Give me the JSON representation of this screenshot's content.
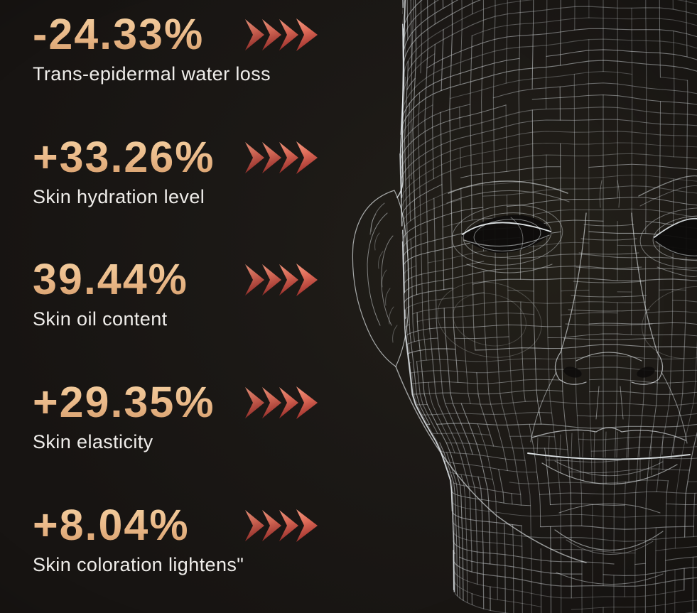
{
  "page": {
    "description": "Skincare clinical results infographic over a 3D wireframe face",
    "background_color": "#1B1816"
  },
  "stats": [
    {
      "value": "-24.33%",
      "label": "Trans-epidermal water loss"
    },
    {
      "value": "+33.26%",
      "label": "Skin hydration level"
    },
    {
      "value": "39.44%",
      "label": "Skin oil content"
    },
    {
      "value": "+29.35%",
      "label": "Skin elasticity"
    },
    {
      "value": "+8.04%",
      "label": "Skin coloration lightens\""
    }
  ],
  "chart_data": {
    "type": "table",
    "title": "Skin improvement percentages",
    "categories": [
      "Trans-epidermal water loss",
      "Skin hydration level",
      "Skin oil content",
      "Skin elasticity",
      "Skin coloration lightens\""
    ],
    "values": [
      -24.33,
      33.26,
      39.44,
      29.35,
      8.04
    ],
    "value_labels": [
      "-24.33%",
      "+33.26%",
      "39.44%",
      "+29.35%",
      "+8.04%"
    ],
    "legend": "none",
    "layout": "stat callouts stacked vertically on left, wireframe head illustration on right"
  },
  "icons": {
    "arrow": {
      "name": "chevron-arrows-icon",
      "count": 4,
      "direction": "right"
    }
  },
  "style": {
    "value_color_top": "#F5D2A3",
    "value_color_bottom": "#D49C6A",
    "label_color": "#EFEDEA",
    "arrow_gradient_light": "#F49A80",
    "arrow_gradient_mid": "#DE6B58",
    "arrow_gradient_dark": "#9E2F2B",
    "wireframe_line_color": "#D8DDE0",
    "background_color": "#1B1816"
  },
  "illustration": {
    "name": "wireframe-3d-face",
    "description": "white polygon-mesh human head, front view, right side cropped by image edge"
  }
}
